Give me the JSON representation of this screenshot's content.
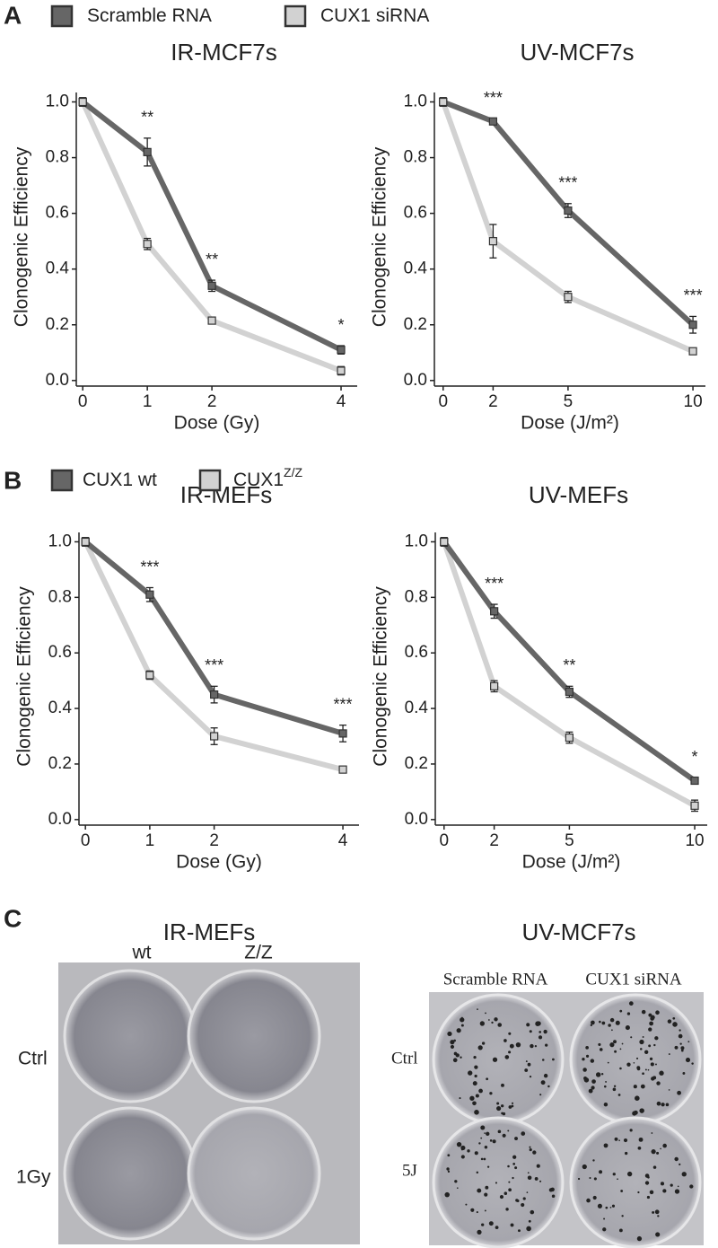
{
  "panels": [
    "A",
    "B",
    "C"
  ],
  "chart_data": [
    {
      "type": "line",
      "title": "IR-MCF7s",
      "x_label": "Dose (Gy)",
      "y_label": "Clonogenic Efficiency",
      "legend": true,
      "x": [
        0,
        1,
        2,
        4
      ],
      "xlim": [
        -0.1,
        4.25
      ],
      "xticks": [
        0,
        1,
        2,
        4
      ],
      "ylim": [
        -0.02,
        1.05
      ],
      "yticks": [
        {
          "value": 0,
          "label": "0.0"
        },
        0.2,
        0.4,
        0.6,
        0.8,
        {
          "value": 1,
          "label": "1.0"
        }
      ],
      "grid": false,
      "series": [
        {
          "name": "Scramble RNA",
          "color": "#666666",
          "values": [
            1.0,
            0.82,
            0.34,
            0.11
          ],
          "errors": [
            0.015,
            0.05,
            0.02,
            0.015
          ]
        },
        {
          "name": "CUX1 siRNA",
          "color": "#d2d2d2",
          "values": [
            1.0,
            0.49,
            0.215,
            0.035
          ],
          "errors": [
            0.015,
            0.02,
            0.01,
            0.015
          ]
        }
      ],
      "annotations": [
        {
          "x": 1,
          "text": "**"
        },
        {
          "x": 2,
          "text": "**"
        },
        {
          "x": 4,
          "text": "*"
        }
      ]
    },
    {
      "type": "line",
      "title": "UV-MCF7s",
      "x_label": "Dose (J/m²)",
      "y_label": "Clonogenic Efficiency",
      "x": [
        0,
        2,
        5,
        10
      ],
      "xlim": [
        -0.35,
        10.5
      ],
      "xticks": [
        0,
        2,
        5,
        10
      ],
      "ylim": [
        -0.02,
        1.05
      ],
      "yticks": [
        {
          "value": 0,
          "label": "0.0"
        },
        0.2,
        0.4,
        0.6,
        0.8,
        {
          "value": 1,
          "label": "1.0"
        }
      ],
      "grid": false,
      "series": [
        {
          "color": "#666666",
          "values": [
            1.0,
            0.93,
            0.61,
            0.2
          ],
          "errors": [
            0.015,
            0.01,
            0.025,
            0.03
          ]
        },
        {
          "color": "#d2d2d2",
          "values": [
            1.0,
            0.5,
            0.3,
            0.105
          ],
          "errors": [
            0.015,
            0.06,
            0.02,
            0.01
          ]
        }
      ],
      "annotations": [
        {
          "x": 2,
          "text": "***"
        },
        {
          "x": 5,
          "text": "***"
        },
        {
          "x": 10,
          "text": "***"
        }
      ]
    },
    {
      "type": "line",
      "title": "IR-MEFs",
      "x_label": "Dose (Gy)",
      "y_label": "Clonogenic Efficiency",
      "legend": true,
      "x": [
        0,
        1,
        2,
        4
      ],
      "xlim": [
        -0.1,
        4.25
      ],
      "xticks": [
        0,
        1,
        2,
        4
      ],
      "ylim": [
        -0.02,
        1.05
      ],
      "yticks": [
        {
          "value": 0,
          "label": "0.0"
        },
        0.2,
        0.4,
        0.6,
        0.8,
        {
          "value": 1,
          "label": "1.0"
        }
      ],
      "grid": false,
      "series": [
        {
          "name": "CUX1 wt",
          "color": "#666666",
          "values": [
            1.0,
            0.81,
            0.45,
            0.31
          ],
          "errors": [
            0.015,
            0.025,
            0.03,
            0.03
          ]
        },
        {
          "name": "CUX1",
          "superscript": "Z/Z",
          "color": "#d2d2d2",
          "values": [
            1.0,
            0.52,
            0.3,
            0.18
          ],
          "errors": [
            0.015,
            0.015,
            0.03,
            0.01
          ]
        }
      ],
      "annotations": [
        {
          "x": 1,
          "text": "***"
        },
        {
          "x": 2,
          "text": "***"
        },
        {
          "x": 4,
          "text": "***"
        }
      ]
    },
    {
      "type": "line",
      "title": "UV-MEFs",
      "x_label": "Dose (J/m²)",
      "y_label": "Clonogenic Efficiency",
      "x": [
        0,
        2,
        5,
        10
      ],
      "xlim": [
        -0.35,
        10.5
      ],
      "xticks": [
        0,
        2,
        5,
        10
      ],
      "ylim": [
        -0.02,
        1.05
      ],
      "yticks": [
        {
          "value": 0,
          "label": "0.0"
        },
        0.2,
        0.4,
        0.6,
        0.8,
        {
          "value": 1,
          "label": "1.0"
        }
      ],
      "grid": false,
      "series": [
        {
          "color": "#666666",
          "values": [
            1.0,
            0.75,
            0.46,
            0.14
          ],
          "errors": [
            0.015,
            0.025,
            0.02,
            0.01
          ]
        },
        {
          "color": "#d2d2d2",
          "values": [
            1.0,
            0.48,
            0.295,
            0.05
          ],
          "errors": [
            0.015,
            0.02,
            0.02,
            0.02
          ]
        }
      ],
      "annotations": [
        {
          "x": 2,
          "text": "***"
        },
        {
          "x": 5,
          "text": "**"
        },
        {
          "x": 10,
          "text": "*"
        }
      ]
    }
  ],
  "photos": [
    {
      "title": "IR-MEFs",
      "columns": [
        "wt",
        "Z/Z"
      ],
      "rows": [
        "Ctrl",
        "1Gy"
      ]
    },
    {
      "title": "UV-MCF7s",
      "columns": [
        "Scramble RNA",
        "CUX1 siRNA"
      ],
      "rows": [
        "Ctrl",
        "5J"
      ]
    }
  ]
}
